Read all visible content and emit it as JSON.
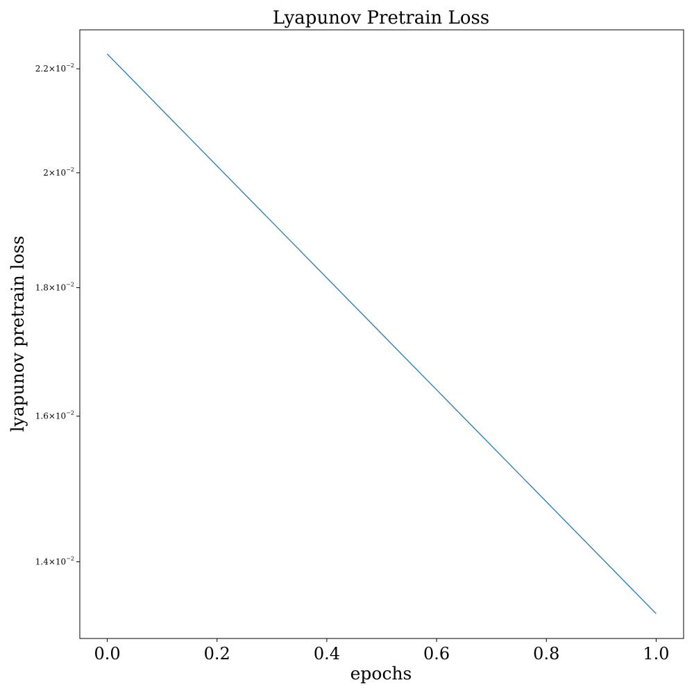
{
  "chart_data": {
    "type": "line",
    "title": "Lyapunov Pretrain Loss",
    "xlabel": "epochs",
    "ylabel": "lyapunov pretrain loss",
    "yscale": "log",
    "xlim": [
      -0.05,
      1.05
    ],
    "ylim": [
      0.01305,
      0.0228
    ],
    "grid": false,
    "xticks": [
      {
        "value": 0.0,
        "label": "0.0"
      },
      {
        "value": 0.2,
        "label": "0.2"
      },
      {
        "value": 0.4,
        "label": "0.4"
      },
      {
        "value": 0.6,
        "label": "0.6"
      },
      {
        "value": 0.8,
        "label": "0.8"
      },
      {
        "value": 1.0,
        "label": "1.0"
      }
    ],
    "yticks": [
      {
        "value": 0.022,
        "mantissa": "2.2",
        "base": "10",
        "exponent": "−2"
      },
      {
        "value": 0.02,
        "mantissa": "2",
        "base": "10",
        "exponent": "−2"
      },
      {
        "value": 0.018,
        "mantissa": "1.8",
        "base": "10",
        "exponent": "−2"
      },
      {
        "value": 0.016,
        "mantissa": "1.6",
        "base": "10",
        "exponent": "−2"
      },
      {
        "value": 0.014,
        "mantissa": "1.4",
        "base": "10",
        "exponent": "−2"
      }
    ],
    "series": [
      {
        "color": "#1f77b4",
        "x": [
          0,
          1
        ],
        "y": [
          0.0223,
          0.01335
        ]
      }
    ]
  }
}
